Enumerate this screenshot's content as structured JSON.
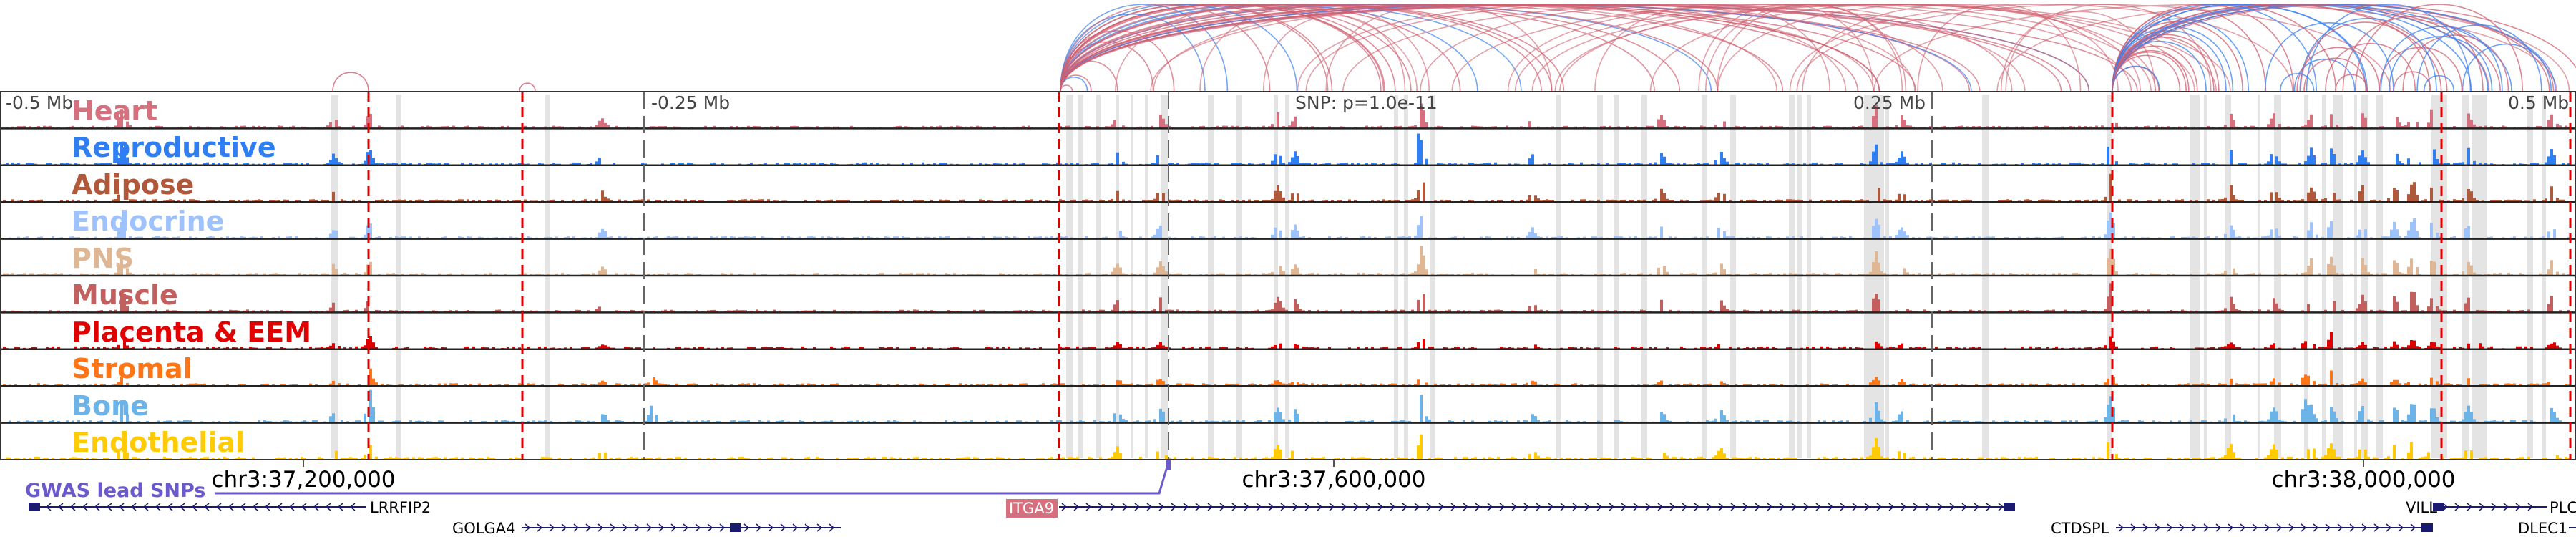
{
  "tracks": [
    {
      "label": "Heart",
      "color": "#d6707f"
    },
    {
      "label": "Reproductive",
      "color": "#2f7ff2"
    },
    {
      "label": "Adipose",
      "color": "#b0583a"
    },
    {
      "label": "Endocrine",
      "color": "#9ec2fb"
    },
    {
      "label": "PNS",
      "color": "#dfb794"
    },
    {
      "label": "Muscle",
      "color": "#c1605e"
    },
    {
      "label": "Placenta & EEM",
      "color": "#e00000"
    },
    {
      "label": "Stromal",
      "color": "#ff7414"
    },
    {
      "label": "Bone",
      "color": "#6cb4e8"
    },
    {
      "label": "Endothelial",
      "color": "#ffcb05"
    }
  ],
  "axis": {
    "left": "-0.5 Mb",
    "left_mid": "-0.25 Mb",
    "right_mid": "0.25 Mb",
    "right": "0.5 Mb",
    "snp": "SNP: p=1.0e-11"
  },
  "coordinates": [
    "chr3:37,200,000",
    "chr3:37,600,000",
    "chr3:38,000,000"
  ],
  "gwas_label": "GWAS lead SNPs",
  "genes": [
    "LRRFIP2",
    "GOLGA4",
    "ITGA9",
    "CTDSPL",
    "VILL",
    "PLC",
    "DLEC1"
  ],
  "colors": {
    "gwas": "#6a5acd",
    "gene": "#1a1a6e",
    "highlight_gene": "#d6707f",
    "arc_red": "#d06070",
    "arc_blue": "#3a80f0",
    "snp_line": "#e00000"
  }
}
